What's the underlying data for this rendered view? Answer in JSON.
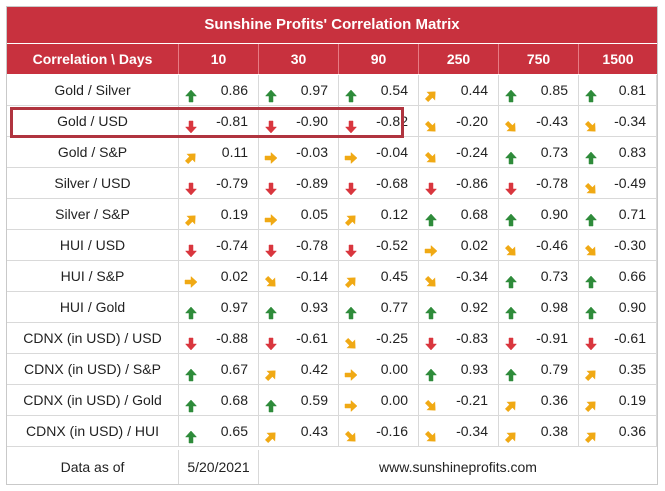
{
  "table": {
    "title": "Sunshine Profits' Correlation Matrix",
    "header": [
      "Correlation \\ Days",
      "10",
      "30",
      "90",
      "250",
      "750",
      "1500"
    ],
    "colors": {
      "header_bg": "#c8313e",
      "up": "#2e8b3a",
      "down": "#d9363e",
      "side": "#f0a914",
      "highlight": "#b0343f"
    },
    "rows": [
      {
        "label": "Gold / Silver",
        "values": [
          "0.86",
          "0.97",
          "0.54",
          "0.44",
          "0.85",
          "0.81"
        ],
        "arrows": [
          "up",
          "up",
          "up",
          "up-right",
          "up",
          "up"
        ]
      },
      {
        "label": "Gold / USD",
        "values": [
          "-0.81",
          "-0.90",
          "-0.82",
          "-0.20",
          "-0.43",
          "-0.34"
        ],
        "arrows": [
          "down",
          "down",
          "down",
          "down-right",
          "down-right",
          "down-right"
        ]
      },
      {
        "label": "Gold / S&P",
        "values": [
          "0.11",
          "-0.03",
          "-0.04",
          "-0.24",
          "0.73",
          "0.83"
        ],
        "arrows": [
          "up-right",
          "right",
          "right",
          "down-right",
          "up",
          "up"
        ]
      },
      {
        "label": "Silver / USD",
        "values": [
          "-0.79",
          "-0.89",
          "-0.68",
          "-0.86",
          "-0.78",
          "-0.49"
        ],
        "arrows": [
          "down",
          "down",
          "down",
          "down",
          "down",
          "down-right"
        ]
      },
      {
        "label": "Silver / S&P",
        "values": [
          "0.19",
          "0.05",
          "0.12",
          "0.68",
          "0.90",
          "0.71"
        ],
        "arrows": [
          "up-right",
          "right",
          "up-right",
          "up",
          "up",
          "up"
        ]
      },
      {
        "label": "HUI / USD",
        "values": [
          "-0.74",
          "-0.78",
          "-0.52",
          "0.02",
          "-0.46",
          "-0.30"
        ],
        "arrows": [
          "down",
          "down",
          "down",
          "right",
          "down-right",
          "down-right"
        ]
      },
      {
        "label": "HUI / S&P",
        "values": [
          "0.02",
          "-0.14",
          "0.45",
          "-0.34",
          "0.73",
          "0.66"
        ],
        "arrows": [
          "right",
          "down-right",
          "up-right",
          "down-right",
          "up",
          "up"
        ]
      },
      {
        "label": "HUI / Gold",
        "values": [
          "0.97",
          "0.93",
          "0.77",
          "0.92",
          "0.98",
          "0.90"
        ],
        "arrows": [
          "up",
          "up",
          "up",
          "up",
          "up",
          "up"
        ]
      },
      {
        "label": "CDNX (in USD) / USD",
        "values": [
          "-0.88",
          "-0.61",
          "-0.25",
          "-0.83",
          "-0.91",
          "-0.61"
        ],
        "arrows": [
          "down",
          "down",
          "down-right",
          "down",
          "down",
          "down"
        ]
      },
      {
        "label": "CDNX (in USD) / S&P",
        "values": [
          "0.67",
          "0.42",
          "0.00",
          "0.93",
          "0.79",
          "0.35"
        ],
        "arrows": [
          "up",
          "up-right",
          "right",
          "up",
          "up",
          "up-right"
        ]
      },
      {
        "label": "CDNX (in USD) / Gold",
        "values": [
          "0.68",
          "0.59",
          "0.00",
          "-0.21",
          "0.36",
          "0.19"
        ],
        "arrows": [
          "up",
          "up",
          "right",
          "down-right",
          "up-right",
          "up-right"
        ]
      },
      {
        "label": "CDNX (in USD) / HUI",
        "values": [
          "0.65",
          "0.43",
          "-0.16",
          "-0.34",
          "0.38",
          "0.36"
        ],
        "arrows": [
          "up",
          "up-right",
          "down-right",
          "down-right",
          "up-right",
          "up-right"
        ]
      }
    ],
    "footer": {
      "label": "Data as of",
      "date": "5/20/2021",
      "website": "www.sunshineprofits.com"
    }
  }
}
